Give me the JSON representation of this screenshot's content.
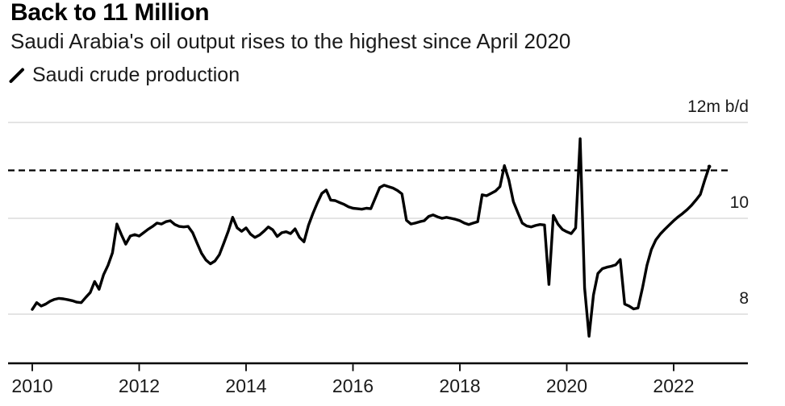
{
  "colors": {
    "line": "#000000",
    "grid": "#d4d4d4",
    "axis": "#000000",
    "reference_line": "#000000",
    "text": "#1a1a1a",
    "background": "#ffffff"
  },
  "chart_data": {
    "type": "line",
    "title": "Back to 11 Million",
    "subtitle": "Saudi Arabia's oil output rises to the highest since April 2020",
    "legend": [
      {
        "label": "Saudi crude production",
        "marker": "slash-icon"
      }
    ],
    "x_start": {
      "year": 2010,
      "month": 1
    },
    "x_interval": "monthly",
    "x_ticks": [
      "2010",
      "2012",
      "2014",
      "2016",
      "2018",
      "2020",
      "2022"
    ],
    "y_axis": [
      {
        "value": 12,
        "label": "12m b/d"
      },
      {
        "value": 10,
        "label": "10"
      },
      {
        "value": 8,
        "label": "8"
      }
    ],
    "reference_line": {
      "value": 11,
      "style": "dashed"
    },
    "ylim": [
      7.0,
      12.6
    ],
    "grid": true,
    "legend_position": "top-left",
    "series": [
      {
        "name": "Saudi crude production",
        "unit": "million barrels per day",
        "values": [
          8.1,
          8.24,
          8.17,
          8.21,
          8.27,
          8.31,
          8.33,
          8.32,
          8.3,
          8.28,
          8.25,
          8.24,
          8.35,
          8.45,
          8.68,
          8.52,
          8.82,
          9.02,
          9.28,
          9.88,
          9.66,
          9.46,
          9.63,
          9.66,
          9.63,
          9.7,
          9.77,
          9.83,
          9.9,
          9.88,
          9.93,
          9.95,
          9.87,
          9.83,
          9.82,
          9.83,
          9.7,
          9.48,
          9.27,
          9.13,
          9.05,
          9.11,
          9.24,
          9.48,
          9.73,
          10.02,
          9.8,
          9.73,
          9.8,
          9.67,
          9.6,
          9.65,
          9.73,
          9.82,
          9.76,
          9.62,
          9.7,
          9.72,
          9.68,
          9.78,
          9.6,
          9.51,
          9.85,
          10.1,
          10.32,
          10.52,
          10.59,
          10.38,
          10.37,
          10.33,
          10.29,
          10.24,
          10.21,
          10.2,
          10.19,
          10.21,
          10.2,
          10.42,
          10.64,
          10.69,
          10.66,
          10.63,
          10.58,
          10.51,
          9.96,
          9.88,
          9.9,
          9.93,
          9.95,
          10.04,
          10.07,
          10.03,
          10.0,
          10.02,
          10.0,
          9.98,
          9.95,
          9.9,
          9.87,
          9.9,
          9.93,
          10.49,
          10.47,
          10.52,
          10.57,
          10.66,
          11.1,
          10.8,
          10.35,
          10.12,
          9.9,
          9.84,
          9.82,
          9.85,
          9.87,
          9.86,
          8.62,
          10.06,
          9.88,
          9.77,
          9.72,
          9.68,
          9.8,
          11.66,
          8.55,
          7.54,
          8.4,
          8.85,
          8.95,
          8.98,
          9.0,
          9.03,
          9.14,
          8.21,
          8.17,
          8.11,
          8.13,
          8.55,
          9.02,
          9.35,
          9.55,
          9.67,
          9.77,
          9.86,
          9.95,
          10.03,
          10.1,
          10.18,
          10.27,
          10.38,
          10.5,
          10.8,
          11.08
        ]
      }
    ]
  }
}
